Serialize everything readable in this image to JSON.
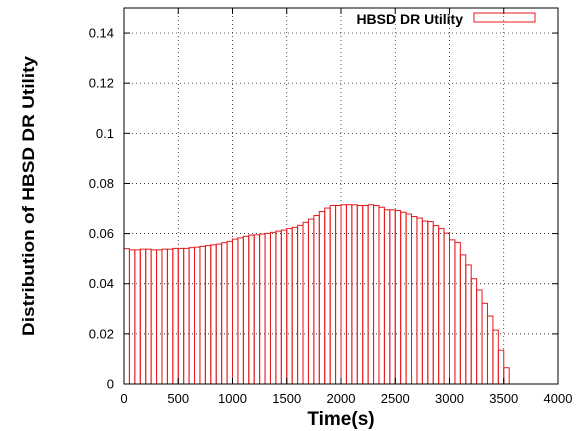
{
  "chart_data": {
    "type": "bar",
    "xlabel": "Time(s)",
    "ylabel": "Distribution of HBSD DR Utility",
    "xlim": [
      0,
      4000
    ],
    "ylim": [
      0,
      0.15
    ],
    "x_ticks": [
      "0",
      "500",
      "1000",
      "1500",
      "2000",
      "2500",
      "3000",
      "3500",
      "4000"
    ],
    "y_ticks": [
      "0",
      "0.02",
      "0.04",
      "0.06",
      "0.08",
      "0.1",
      "0.12",
      "0.14"
    ],
    "grid": true,
    "legend_position": "top-right",
    "bar_color": "#e41a1c",
    "bin_width": 50,
    "series": [
      {
        "name": "HBSD DR Utility",
        "x": [
          0,
          50,
          100,
          150,
          200,
          250,
          300,
          350,
          400,
          450,
          500,
          550,
          600,
          650,
          700,
          750,
          800,
          850,
          900,
          950,
          1000,
          1050,
          1100,
          1150,
          1200,
          1250,
          1300,
          1350,
          1400,
          1450,
          1500,
          1550,
          1600,
          1650,
          1700,
          1750,
          1800,
          1850,
          1900,
          1950,
          2000,
          2050,
          2100,
          2150,
          2200,
          2250,
          2300,
          2350,
          2400,
          2450,
          2500,
          2550,
          2600,
          2650,
          2700,
          2750,
          2800,
          2850,
          2900,
          2950,
          3000,
          3050,
          3100,
          3150,
          3200,
          3250,
          3300,
          3350,
          3400,
          3450,
          3500,
          3550
        ],
        "values": [
          0.054,
          0.0535,
          0.0535,
          0.0538,
          0.0538,
          0.0535,
          0.0535,
          0.0538,
          0.0538,
          0.0541,
          0.0541,
          0.0541,
          0.0544,
          0.0546,
          0.0549,
          0.0552,
          0.0555,
          0.0558,
          0.0564,
          0.0569,
          0.0578,
          0.0583,
          0.0589,
          0.0594,
          0.0595,
          0.0598,
          0.0601,
          0.0605,
          0.061,
          0.0614,
          0.062,
          0.0625,
          0.0633,
          0.0645,
          0.0658,
          0.0672,
          0.0688,
          0.0702,
          0.0712,
          0.0712,
          0.0715,
          0.0715,
          0.0715,
          0.0712,
          0.0712,
          0.0715,
          0.0712,
          0.0705,
          0.0695,
          0.0695,
          0.0692,
          0.0685,
          0.0678,
          0.0668,
          0.0662,
          0.065,
          0.0648,
          0.0632,
          0.062,
          0.0602,
          0.0575,
          0.0565,
          0.0515,
          0.0475,
          0.042,
          0.0375,
          0.0322,
          0.0271,
          0.0215,
          0.0135,
          0.0065,
          0.0
        ]
      }
    ]
  }
}
